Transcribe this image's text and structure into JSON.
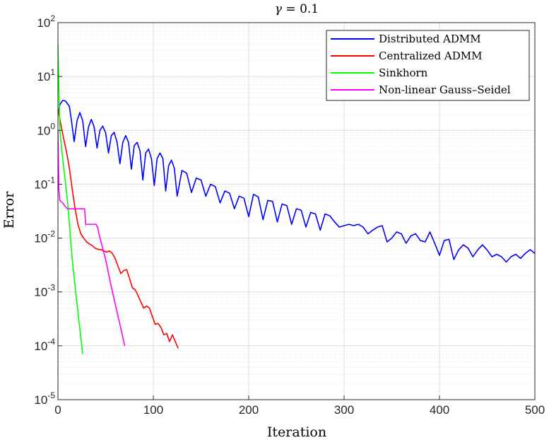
{
  "chart_data": {
    "type": "line",
    "title": "γ = 0.1",
    "xlabel": "Iteration",
    "ylabel": "Error",
    "xlim": [
      0,
      500
    ],
    "ylim": [
      1e-05,
      100
    ],
    "yscale": "log",
    "grid": true,
    "legend_position": "top-right",
    "x_ticks": [
      0,
      100,
      200,
      300,
      400,
      500
    ],
    "x_tick_labels": [
      "0",
      "100",
      "200",
      "300",
      "400",
      "500"
    ],
    "y_ticks": [
      1e-05,
      0.0001,
      0.001,
      0.01,
      0.1,
      1,
      10,
      100
    ],
    "y_tick_labels": [
      {
        "base": "10",
        "exp": "-5"
      },
      {
        "base": "10",
        "exp": "-4"
      },
      {
        "base": "10",
        "exp": "-3"
      },
      {
        "base": "10",
        "exp": "-2"
      },
      {
        "base": "10",
        "exp": "-1"
      },
      {
        "base": "10",
        "exp": "0"
      },
      {
        "base": "10",
        "exp": "1"
      },
      {
        "base": "10",
        "exp": "2"
      }
    ],
    "series": [
      {
        "name": "Distributed ADMM",
        "color": "#0000ff",
        "x": [
          0,
          2,
          5,
          8,
          12,
          14,
          17,
          20,
          23,
          26,
          29,
          32,
          35,
          38,
          41,
          44,
          47,
          50,
          53,
          56,
          59,
          62,
          65,
          68,
          71,
          74,
          77,
          80,
          83,
          86,
          89,
          92,
          95,
          98,
          101,
          104,
          107,
          110,
          113,
          116,
          119,
          122,
          125,
          130,
          135,
          140,
          145,
          150,
          155,
          160,
          165,
          170,
          175,
          180,
          185,
          190,
          195,
          200,
          205,
          210,
          215,
          220,
          225,
          230,
          235,
          240,
          245,
          250,
          255,
          260,
          265,
          270,
          275,
          280,
          285,
          290,
          295,
          300,
          305,
          310,
          315,
          320,
          325,
          330,
          335,
          340,
          345,
          350,
          355,
          360,
          365,
          370,
          375,
          380,
          385,
          390,
          395,
          400,
          405,
          410,
          415,
          420,
          425,
          430,
          435,
          440,
          445,
          450,
          455,
          460,
          465,
          470,
          475,
          480,
          485,
          490,
          495,
          500
        ],
        "y": [
          2.0,
          3.0,
          3.6,
          3.5,
          2.8,
          1.6,
          0.62,
          1.5,
          2.15,
          1.5,
          0.5,
          1.15,
          1.6,
          1.15,
          0.47,
          1.0,
          1.2,
          0.9,
          0.38,
          0.8,
          0.92,
          0.6,
          0.24,
          0.6,
          0.8,
          0.6,
          0.19,
          0.52,
          0.6,
          0.42,
          0.12,
          0.38,
          0.45,
          0.3,
          0.095,
          0.3,
          0.38,
          0.3,
          0.075,
          0.22,
          0.28,
          0.2,
          0.06,
          0.18,
          0.16,
          0.07,
          0.13,
          0.12,
          0.06,
          0.1,
          0.09,
          0.045,
          0.075,
          0.068,
          0.035,
          0.06,
          0.055,
          0.025,
          0.065,
          0.058,
          0.022,
          0.05,
          0.048,
          0.02,
          0.043,
          0.04,
          0.018,
          0.035,
          0.033,
          0.016,
          0.03,
          0.028,
          0.014,
          0.028,
          0.026,
          0.02,
          0.016,
          0.017,
          0.018,
          0.017,
          0.018,
          0.016,
          0.012,
          0.014,
          0.016,
          0.017,
          0.0085,
          0.01,
          0.013,
          0.012,
          0.008,
          0.011,
          0.012,
          0.009,
          0.0085,
          0.013,
          0.008,
          0.0048,
          0.009,
          0.0095,
          0.004,
          0.006,
          0.0075,
          0.0065,
          0.0045,
          0.006,
          0.0075,
          0.006,
          0.0045,
          0.005,
          0.0045,
          0.0036,
          0.0045,
          0.005,
          0.0042,
          0.0052,
          0.0061,
          0.0052
        ]
      },
      {
        "name": "Centralized ADMM",
        "color": "#ff0000",
        "x": [
          0,
          3,
          6,
          9,
          12,
          15,
          18,
          21,
          24,
          27,
          30,
          33,
          36,
          39,
          42,
          45,
          48,
          51,
          54,
          57,
          60,
          63,
          66,
          69,
          72,
          75,
          78,
          81,
          84,
          87,
          90,
          93,
          96,
          99,
          102,
          105,
          108,
          111,
          114,
          117,
          120,
          123,
          126
        ],
        "y": [
          2.5,
          1.3,
          0.7,
          0.4,
          0.2,
          0.08,
          0.035,
          0.018,
          0.012,
          0.01,
          0.0085,
          0.0078,
          0.0072,
          0.0065,
          0.0062,
          0.0061,
          0.0058,
          0.0055,
          0.0058,
          0.0052,
          0.0042,
          0.003,
          0.0022,
          0.0025,
          0.0026,
          0.0018,
          0.0012,
          0.0011,
          0.00085,
          0.00065,
          0.0005,
          0.00055,
          0.0005,
          0.00035,
          0.00025,
          0.00026,
          0.00022,
          0.00016,
          0.00017,
          0.00012,
          0.00016,
          0.00012,
          9e-05
        ]
      },
      {
        "name": "Sinkhorn",
        "color": "#00ff00",
        "x": [
          0,
          2,
          5,
          10,
          15,
          20,
          26
        ],
        "y": [
          40,
          1.0,
          0.3,
          0.05,
          0.004,
          0.0006,
          7e-05
        ]
      },
      {
        "name": "Non-linear Gauss–Seidel",
        "color": "#ff00ff",
        "x": [
          0,
          1,
          2,
          5,
          8,
          10,
          15,
          20,
          25,
          28,
          29,
          35,
          40,
          42,
          43,
          50,
          55,
          60,
          65,
          70
        ],
        "y": [
          1.0,
          0.08,
          0.05,
          0.045,
          0.038,
          0.035,
          0.035,
          0.035,
          0.035,
          0.035,
          0.018,
          0.018,
          0.018,
          0.015,
          0.012,
          0.004,
          0.0015,
          0.0006,
          0.00025,
          0.0001
        ]
      }
    ]
  }
}
